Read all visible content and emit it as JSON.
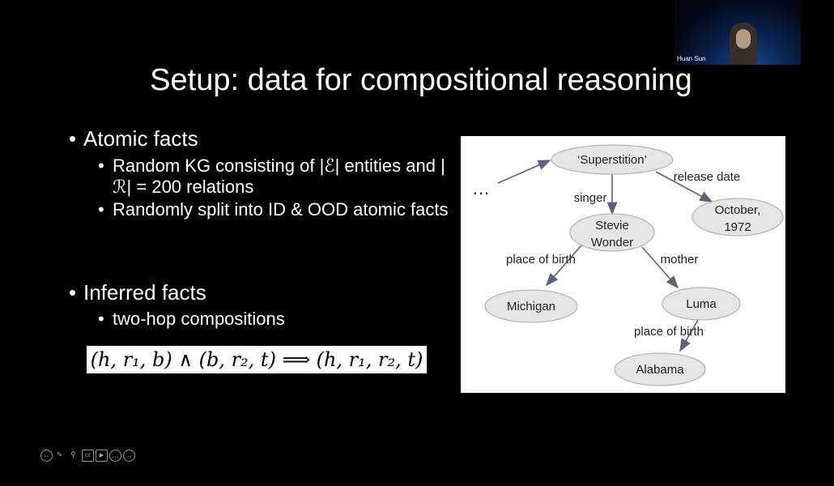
{
  "slide": {
    "title": "Setup: data for compositional reasoning",
    "bullets": [
      {
        "label": "Atomic facts",
        "sub": [
          "Random KG consisting of |ℰ| entities and |ℛ| = 200 relations",
          "Randomly split into ID & OOD atomic facts"
        ]
      },
      {
        "label": "Inferred facts",
        "sub": [
          "two-hop compositions"
        ]
      }
    ],
    "formula": "(h, r₁, b) ∧ (b, r₂, t)  ⟹  (h, r₁, r₂, t)",
    "diagram": {
      "ellipsis": "…",
      "nodes": {
        "superstition": "‘Superstition’",
        "october_1": "October,",
        "october_2": "1972",
        "stevie_1": "Stevie",
        "stevie_2": "Wonder",
        "michigan": "Michigan",
        "luma": "Luma",
        "alabama": "Alabama"
      },
      "edges": {
        "singer": "singer",
        "release_date": "release date",
        "place_of_birth_1": "place of birth",
        "mother": "mother",
        "place_of_birth_2": "place of birth"
      }
    }
  },
  "video": {
    "participant_name": "Huan Sun"
  },
  "controls": [
    {
      "icon": "arrow-left-icon",
      "glyph": "←"
    },
    {
      "icon": "pencil-icon",
      "glyph": "✎"
    },
    {
      "icon": "zoom-icon",
      "glyph": "⚲"
    },
    {
      "icon": "captions-icon",
      "glyph": "cc"
    },
    {
      "icon": "camera-icon",
      "glyph": "▶"
    },
    {
      "icon": "more-icon",
      "glyph": "…"
    },
    {
      "icon": "arrow-right-icon",
      "glyph": "→"
    }
  ]
}
